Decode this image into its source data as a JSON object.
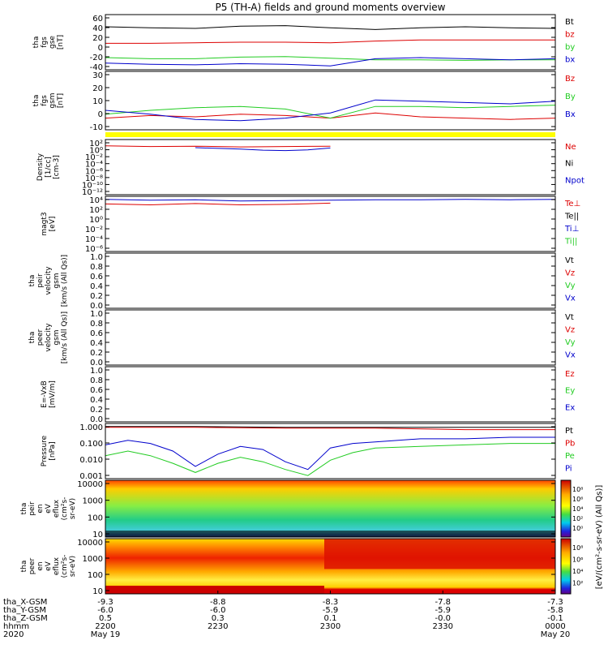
{
  "title": "P5 (TH-A) fields and ground moments overview",
  "colors": {
    "black": "#000000",
    "red": "#dd0000",
    "green": "#22cc22",
    "blue": "#0000cc",
    "yellow": "#ffff00",
    "purple": "#cc44cc"
  },
  "chart_data": [
    {
      "type": "line",
      "panel": "fgs-gse",
      "ylabel": [
        "tha",
        "fgs",
        "gse",
        "[nT]"
      ],
      "ylim": [
        -40,
        60
      ],
      "yticks": [
        "60",
        "40",
        "20",
        "0",
        "-20",
        "-40"
      ],
      "legend": [
        {
          "label": "Bt",
          "color": "#000000"
        },
        {
          "label": "bz",
          "color": "#dd0000"
        },
        {
          "label": "by",
          "color": "#22cc22"
        },
        {
          "label": "bx",
          "color": "#0000cc"
        }
      ],
      "series": [
        {
          "name": "Bt",
          "color": "#000000",
          "x": [
            0,
            0.1,
            0.2,
            0.3,
            0.4,
            0.5,
            0.6,
            0.7,
            0.8,
            0.9,
            1.0
          ],
          "y": [
            38,
            36,
            35,
            39,
            40,
            36,
            33,
            36,
            38,
            36,
            35
          ]
        },
        {
          "name": "bz",
          "color": "#dd0000",
          "x": [
            0,
            0.1,
            0.2,
            0.3,
            0.4,
            0.5,
            0.6,
            0.7,
            0.8,
            0.9,
            1.0
          ],
          "y": [
            8,
            8,
            9,
            10,
            10,
            9,
            12,
            14,
            14,
            14,
            14
          ]
        },
        {
          "name": "by",
          "color": "#22cc22",
          "x": [
            0,
            0.1,
            0.2,
            0.3,
            0.4,
            0.5,
            0.6,
            0.7,
            0.8,
            0.9,
            1.0
          ],
          "y": [
            -18,
            -20,
            -20,
            -17,
            -16,
            -19,
            -22,
            -22,
            -23,
            -22,
            -22
          ]
        },
        {
          "name": "bx",
          "color": "#0000cc",
          "x": [
            0,
            0.1,
            0.2,
            0.3,
            0.4,
            0.5,
            0.6,
            0.7,
            0.8,
            0.9,
            1.0
          ],
          "y": [
            -28,
            -30,
            -31,
            -29,
            -30,
            -33,
            -20,
            -18,
            -20,
            -22,
            -20
          ]
        }
      ]
    },
    {
      "type": "line",
      "panel": "fgs-gsm",
      "ylabel": [
        "tha",
        "fgs",
        "gsm",
        "[nT]"
      ],
      "ylim": [
        -15,
        30
      ],
      "yticks": [
        "30",
        "20",
        "10",
        "0",
        "-10"
      ],
      "legend": [
        {
          "label": "Bz",
          "color": "#dd0000"
        },
        {
          "label": "By",
          "color": "#22cc22"
        },
        {
          "label": "Bx",
          "color": "#0000cc"
        }
      ],
      "series": [
        {
          "name": "Bz",
          "color": "#dd0000",
          "x": [
            0,
            0.1,
            0.2,
            0.3,
            0.4,
            0.5,
            0.6,
            0.7,
            0.8,
            0.9,
            1.0
          ],
          "y": [
            -6,
            -4,
            -5,
            -3,
            -4,
            -6,
            -2,
            -5,
            -6,
            -7,
            -6
          ]
        },
        {
          "name": "By",
          "color": "#22cc22",
          "x": [
            0,
            0.1,
            0.2,
            0.3,
            0.4,
            0.5,
            0.6,
            0.7,
            0.8,
            0.9,
            1.0
          ],
          "y": [
            -3,
            0,
            2,
            3,
            1,
            -6,
            3,
            3,
            2,
            3,
            4
          ]
        },
        {
          "name": "Bx",
          "color": "#0000cc",
          "x": [
            0,
            0.1,
            0.2,
            0.3,
            0.4,
            0.5,
            0.6,
            0.7,
            0.8,
            0.9,
            1.0
          ],
          "y": [
            0,
            -3,
            -7,
            -8,
            -6,
            -2,
            8,
            7,
            6,
            5,
            7
          ]
        }
      ]
    },
    {
      "type": "line",
      "panel": "density",
      "ylabel": [
        "Density",
        "[1/cc]",
        "[cm-3]"
      ],
      "ylim": [
        -13,
        2
      ],
      "log": true,
      "yticks": [
        "10²",
        "10⁰",
        "10⁻²",
        "10⁻⁴",
        "10⁻⁶",
        "10⁻⁸",
        "10⁻¹⁰",
        "10⁻¹²"
      ],
      "legend": [
        {
          "label": "Ne",
          "color": "#dd0000"
        },
        {
          "label": "Ni",
          "color": "#000000"
        },
        {
          "label": "Npot",
          "color": "#0000cc"
        }
      ],
      "series": [
        {
          "name": "Ne",
          "color": "#dd0000",
          "x": [
            0,
            0.1,
            0.2,
            0.3,
            0.4,
            0.5
          ],
          "y": [
            0.3,
            0.1,
            0.2,
            0.0,
            0.1,
            0.2
          ]
        },
        {
          "name": "Npot",
          "color": "#0000cc",
          "x": [
            0.2,
            0.3,
            0.35,
            0.4,
            0.45,
            0.5
          ],
          "y": [
            -0.2,
            -0.6,
            -0.9,
            -1.0,
            -0.8,
            -0.3
          ]
        }
      ]
    },
    {
      "type": "line",
      "panel": "temperature",
      "ylabel": [
        "magt3",
        "[eV]"
      ],
      "ylim": [
        -8,
        5
      ],
      "log": true,
      "yticks": [
        "10⁴",
        "10²",
        "10⁰",
        "10⁻²",
        "10⁻⁴",
        "10⁻⁶"
      ],
      "legend": [
        {
          "label": "Te⊥",
          "color": "#dd0000"
        },
        {
          "label": "Te||",
          "color": "#000000"
        },
        {
          "label": "Ti⊥",
          "color": "#0000cc"
        },
        {
          "label": "Ti||",
          "color": "#22cc22"
        }
      ],
      "series": [
        {
          "name": "Ti",
          "color": "#0000cc",
          "x": [
            0,
            0.1,
            0.2,
            0.3,
            0.4,
            0.5,
            0.6,
            0.7,
            0.8,
            0.9,
            1.0
          ],
          "y": [
            4.3,
            4.1,
            4.2,
            3.9,
            4.0,
            4.1,
            4.2,
            4.2,
            4.3,
            4.2,
            4.3
          ]
        },
        {
          "name": "Te",
          "color": "#dd0000",
          "x": [
            0,
            0.1,
            0.2,
            0.3,
            0.4,
            0.5
          ],
          "y": [
            3.2,
            3.0,
            3.3,
            3.0,
            3.1,
            3.4
          ]
        }
      ]
    },
    {
      "type": "line",
      "panel": "peir-velocity",
      "ylabel": [
        "tha",
        "peir",
        "velocity",
        "gsm",
        "[km/s (All Qs)]"
      ],
      "ylim": [
        0,
        1
      ],
      "yticks": [
        "1.0",
        "0.8",
        "0.6",
        "0.4",
        "0.2",
        "0.0"
      ],
      "legend": [
        {
          "label": "Vt",
          "color": "#000000"
        },
        {
          "label": "Vz",
          "color": "#dd0000"
        },
        {
          "label": "Vy",
          "color": "#22cc22"
        },
        {
          "label": "Vx",
          "color": "#0000cc"
        }
      ],
      "series": []
    },
    {
      "type": "line",
      "panel": "peer-velocity",
      "ylabel": [
        "tha",
        "peer",
        "velocity",
        "gsm",
        "[km/s (All Qs)]"
      ],
      "ylim": [
        0,
        1
      ],
      "yticks": [
        "1.0",
        "0.8",
        "0.6",
        "0.4",
        "0.2",
        "0.0"
      ],
      "legend": [
        {
          "label": "Vt",
          "color": "#000000"
        },
        {
          "label": "Vz",
          "color": "#dd0000"
        },
        {
          "label": "Vy",
          "color": "#22cc22"
        },
        {
          "label": "Vx",
          "color": "#0000cc"
        }
      ],
      "series": []
    },
    {
      "type": "line",
      "panel": "efield",
      "ylabel": [
        "E=-VxB",
        "[mV/m]"
      ],
      "ylim": [
        0,
        1
      ],
      "yticks": [
        "1.0",
        "0.8",
        "0.6",
        "0.4",
        "0.2",
        "0.0"
      ],
      "legend": [
        {
          "label": "Ez",
          "color": "#dd0000"
        },
        {
          "label": "Ey",
          "color": "#22cc22"
        },
        {
          "label": "Ex",
          "color": "#0000cc"
        }
      ],
      "series": []
    },
    {
      "type": "line",
      "panel": "pressure",
      "ylabel": [
        "Pressure",
        "[nPa]"
      ],
      "ylim": [
        -3.4,
        0.2
      ],
      "log": true,
      "yticks": [
        "1.000",
        "0.100",
        "0.010",
        "0.001"
      ],
      "legend": [
        {
          "label": "Pt",
          "color": "#000000"
        },
        {
          "label": "Pb",
          "color": "#dd0000"
        },
        {
          "label": "Pe",
          "color": "#22cc22"
        },
        {
          "label": "Pi",
          "color": "#0000cc"
        }
      ],
      "series": [
        {
          "name": "Pt",
          "color": "#000000",
          "x": [
            0,
            0.2,
            0.4,
            0.6,
            0.8,
            1.0
          ],
          "y": [
            0.0,
            0.0,
            -0.05,
            -0.05,
            -0.05,
            -0.05
          ]
        },
        {
          "name": "Pb",
          "color": "#dd0000",
          "x": [
            0,
            0.2,
            0.4,
            0.6,
            0.8,
            1.0
          ],
          "y": [
            -0.05,
            -0.05,
            -0.1,
            -0.1,
            -0.2,
            -0.2
          ]
        },
        {
          "name": "Pi",
          "color": "#0000cc",
          "x": [
            0,
            0.05,
            0.1,
            0.15,
            0.2,
            0.25,
            0.3,
            0.35,
            0.4,
            0.45,
            0.5,
            0.55,
            0.6,
            0.7,
            0.8,
            0.9,
            1.0
          ],
          "y": [
            -1.2,
            -0.9,
            -1.1,
            -1.6,
            -2.6,
            -1.8,
            -1.3,
            -1.5,
            -2.3,
            -2.8,
            -1.4,
            -1.1,
            -1.0,
            -0.8,
            -0.8,
            -0.7,
            -0.7
          ]
        },
        {
          "name": "Pe",
          "color": "#22cc22",
          "x": [
            0,
            0.05,
            0.1,
            0.15,
            0.2,
            0.25,
            0.3,
            0.35,
            0.4,
            0.45,
            0.5,
            0.55,
            0.6,
            0.7,
            0.8,
            0.9,
            1.0
          ],
          "y": [
            -1.9,
            -1.6,
            -1.9,
            -2.4,
            -3.0,
            -2.4,
            -2.0,
            -2.3,
            -2.8,
            -3.2,
            -2.2,
            -1.7,
            -1.4,
            -1.3,
            -1.2,
            -1.1,
            -1.1
          ]
        }
      ]
    },
    {
      "type": "heatmap",
      "panel": "peir-eflux",
      "ylabel": [
        "tha",
        "peir",
        "en",
        "eV",
        "eflux",
        "(cm²s-",
        "sr-eV)"
      ],
      "yticks": [
        "10000",
        "1000",
        "100",
        "10"
      ],
      "colorbar_ticks": [
        "10⁸",
        "10⁶",
        "10⁴",
        "10²",
        "10⁰"
      ],
      "colorbar_label": "[eV/(cm²-s-sr-eV) (All Qs)]"
    },
    {
      "type": "heatmap",
      "panel": "peer-eflux",
      "ylabel": [
        "tha",
        "peer",
        "en",
        "eV",
        "eflux",
        "(cm²s-",
        "sr-eV)"
      ],
      "yticks": [
        "10000",
        "1000",
        "100",
        "10"
      ],
      "colorbar_ticks": [
        "10⁸",
        "10⁶",
        "10⁴",
        "10²"
      ],
      "colorbar_label": "[eV/(cm²-s-sr-eV) (All Qs)]"
    }
  ],
  "axis": {
    "rows": [
      {
        "label": "tha_X-GSM",
        "values": [
          "-9.3",
          "-8.8",
          "-8.3",
          "-7.8",
          "-7.3"
        ]
      },
      {
        "label": "tha_Y-GSM",
        "values": [
          "-6.0",
          "-6.0",
          "-5.9",
          "-5.9",
          "-5.8"
        ]
      },
      {
        "label": "tha_Z-GSM",
        "values": [
          "0.5",
          "0.3",
          "0.1",
          "-0.0",
          "-0.1"
        ]
      },
      {
        "label": "hhmm",
        "values": [
          "2200",
          "2230",
          "2300",
          "2330",
          "0000"
        ]
      },
      {
        "label": "2020",
        "values": [
          "May 19",
          "",
          "",
          "",
          "May 20"
        ]
      }
    ]
  }
}
